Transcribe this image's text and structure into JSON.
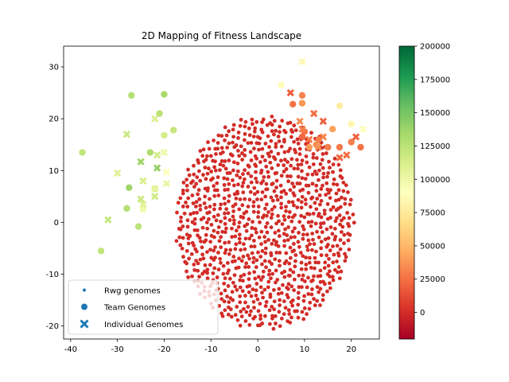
{
  "chart_data": {
    "type": "scatter",
    "title": "2D Mapping of Fitness Landscape",
    "xlabel": "",
    "ylabel": "",
    "xlim": [
      -41.5,
      26
    ],
    "ylim": [
      -22.5,
      34
    ],
    "x_ticks": [
      -40,
      -30,
      -20,
      -10,
      0,
      10,
      20
    ],
    "y_ticks": [
      -20,
      -10,
      0,
      10,
      20,
      30
    ],
    "grid": false,
    "legend_position": "lower-left",
    "colorbar": {
      "colormap": "RdYlGn",
      "range": [
        -20000,
        200000
      ],
      "ticks": [
        0,
        25000,
        50000,
        75000,
        100000,
        125000,
        150000,
        175000,
        200000
      ]
    },
    "series": [
      {
        "name": "Rwg genomes",
        "marker": "small-circle",
        "cloud": {
          "center": [
            1.5,
            0
          ],
          "radius_x": 19,
          "radius_y": 20.5,
          "count": 1000,
          "fitness": 0
        }
      },
      {
        "name": "Team Genomes",
        "marker": "circle",
        "points": [
          [
            -37.5,
            13.5,
            122000
          ],
          [
            -27,
            24.5,
            128000
          ],
          [
            -20,
            24.7,
            133000
          ],
          [
            -21,
            21,
            126000
          ],
          [
            -18,
            17.8,
            120000
          ],
          [
            -20,
            16.8,
            114000
          ],
          [
            -23,
            13.5,
            131000
          ],
          [
            -22,
            6.5,
            112000
          ],
          [
            -27.5,
            6.7,
            136000
          ],
          [
            -28,
            2.7,
            128000
          ],
          [
            -25.5,
            -0.8,
            124000
          ],
          [
            -33.5,
            -5.5,
            122000
          ],
          [
            -24.5,
            2.5,
            98000
          ],
          [
            5,
            26.5,
            88000
          ],
          [
            9.5,
            24.5,
            32000
          ],
          [
            7.5,
            22.8,
            26000
          ],
          [
            9.5,
            23,
            38000
          ],
          [
            17.5,
            22.5,
            78000
          ],
          [
            20,
            19,
            84000
          ],
          [
            10,
            17.5,
            26000
          ],
          [
            9.5,
            16.5,
            22000
          ],
          [
            13,
            16,
            30000
          ],
          [
            16,
            18,
            42000
          ],
          [
            12.5,
            15,
            36000
          ],
          [
            11,
            14.5,
            40000
          ],
          [
            15,
            14.5,
            30000
          ],
          [
            17.5,
            14.5,
            28000
          ],
          [
            20,
            15.5,
            30000
          ],
          [
            22,
            14.5,
            26000
          ]
        ]
      },
      {
        "name": "Individual Genomes",
        "marker": "x",
        "points": [
          [
            -28,
            17,
            118000
          ],
          [
            -22,
            20,
            110000
          ],
          [
            -20,
            13.5,
            100000
          ],
          [
            -21.5,
            13,
            114000
          ],
          [
            -25,
            11.7,
            136000
          ],
          [
            -21.5,
            10.5,
            140000
          ],
          [
            -19.5,
            9.7,
            92000
          ],
          [
            -30,
            9.5,
            108000
          ],
          [
            -24.5,
            8,
            112000
          ],
          [
            -19.5,
            7.5,
            102000
          ],
          [
            -22,
            6.5,
            104000
          ],
          [
            -22,
            5,
            116000
          ],
          [
            -25,
            4.5,
            118000
          ],
          [
            -24.5,
            3.5,
            108000
          ],
          [
            -32,
            0.5,
            120000
          ],
          [
            9.5,
            31,
            84000
          ],
          [
            7,
            25,
            18000
          ],
          [
            9,
            19.5,
            34000
          ],
          [
            12,
            21,
            24000
          ],
          [
            14,
            19.5,
            20000
          ],
          [
            9.5,
            18,
            30000
          ],
          [
            11,
            16,
            28000
          ],
          [
            14,
            16.5,
            32000
          ],
          [
            13,
            14.5,
            36000
          ],
          [
            21,
            16.5,
            20000
          ],
          [
            19,
            13,
            24000
          ],
          [
            17.5,
            12.5,
            22000
          ],
          [
            22.5,
            18,
            92000
          ]
        ]
      }
    ]
  }
}
